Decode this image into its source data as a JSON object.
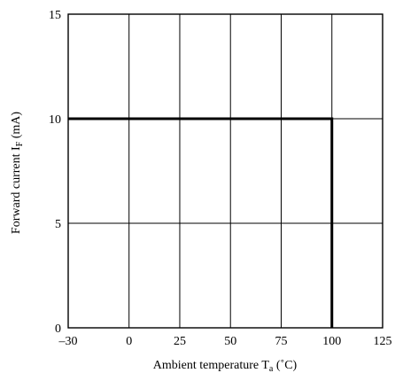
{
  "chart_data": {
    "type": "line",
    "xlabel": {
      "main": "Ambient temperature T",
      "sub": "a",
      "unit": " (˚C)"
    },
    "ylabel": {
      "main": "Forward current I",
      "sub": "F",
      "unit": " (mA)"
    },
    "xlim": [
      -30,
      125
    ],
    "ylim": [
      0,
      15
    ],
    "xticks": [
      -30,
      0,
      25,
      50,
      75,
      100,
      125
    ],
    "xtick_labels": [
      "–30",
      "0",
      "25",
      "50",
      "75",
      "100",
      "125"
    ],
    "yticks": [
      0,
      5,
      10,
      15
    ],
    "ytick_labels": [
      "0",
      "5",
      "10",
      "15"
    ],
    "grid": true,
    "series": [
      {
        "x": [
          -30,
          100,
          100
        ],
        "y": [
          10,
          10,
          0
        ]
      }
    ]
  }
}
